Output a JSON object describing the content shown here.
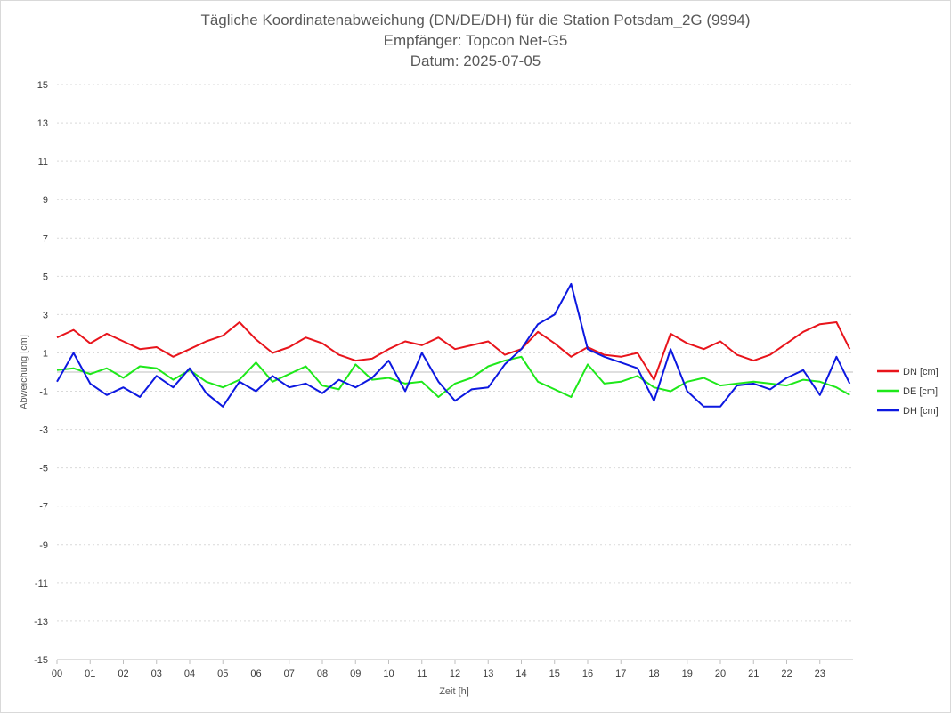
{
  "chart_data": {
    "type": "line",
    "title_lines": [
      "Tägliche Koordinatenabweichung (DN/DE/DH) für die Station Potsdam_2G (9994)",
      "Empfänger: Topcon Net-G5",
      "Datum: 2025-07-05"
    ],
    "xlabel": "Zeit [h]",
    "ylabel": "Abweichung [cm]",
    "xlim": [
      0,
      24
    ],
    "ylim": [
      -15,
      15
    ],
    "xticks": [
      "00",
      "01",
      "02",
      "03",
      "04",
      "05",
      "06",
      "07",
      "08",
      "09",
      "10",
      "11",
      "12",
      "13",
      "14",
      "15",
      "16",
      "17",
      "18",
      "19",
      "20",
      "21",
      "22",
      "23"
    ],
    "yticks": [
      15,
      13,
      11,
      9,
      7,
      5,
      3,
      1,
      -1,
      -3,
      -5,
      -7,
      -9,
      -11,
      -13,
      -15
    ],
    "grid": true,
    "legend_position": "right",
    "x": [
      0,
      0.5,
      1,
      1.5,
      2,
      2.5,
      3,
      3.5,
      4,
      4.5,
      5,
      5.5,
      6,
      6.5,
      7,
      7.5,
      8,
      8.5,
      9,
      9.5,
      10,
      10.5,
      11,
      11.5,
      12,
      12.5,
      13,
      13.5,
      14,
      14.5,
      15,
      15.5,
      16,
      16.5,
      17,
      17.5,
      18,
      18.5,
      19,
      19.5,
      20,
      20.5,
      21,
      21.5,
      22,
      22.5,
      23,
      23.5,
      23.9
    ],
    "series": [
      {
        "name": "DN [cm]",
        "color": "#e8141b",
        "values": [
          1.8,
          2.2,
          1.5,
          2.0,
          1.6,
          1.2,
          1.3,
          0.8,
          1.2,
          1.6,
          1.9,
          2.6,
          1.7,
          1.0,
          1.3,
          1.8,
          1.5,
          0.9,
          0.6,
          0.7,
          1.2,
          1.6,
          1.4,
          1.8,
          1.2,
          1.4,
          1.6,
          0.9,
          1.2,
          2.1,
          1.5,
          0.8,
          1.3,
          0.9,
          0.8,
          1.0,
          -0.4,
          2.0,
          1.5,
          1.2,
          1.6,
          0.9,
          0.6,
          0.9,
          1.5,
          2.1,
          2.5,
          2.6,
          1.2
        ]
      },
      {
        "name": "DE [cm]",
        "color": "#1ee81a",
        "values": [
          0.1,
          0.2,
          -0.1,
          0.2,
          -0.3,
          0.3,
          0.2,
          -0.4,
          0.1,
          -0.5,
          -0.8,
          -0.4,
          0.5,
          -0.5,
          -0.1,
          0.3,
          -0.7,
          -0.9,
          0.4,
          -0.4,
          -0.3,
          -0.6,
          -0.5,
          -1.3,
          -0.6,
          -0.3,
          0.3,
          0.6,
          0.8,
          -0.5,
          -0.9,
          -1.3,
          0.4,
          -0.6,
          -0.5,
          -0.2,
          -0.8,
          -1.0,
          -0.5,
          -0.3,
          -0.7,
          -0.6,
          -0.5,
          -0.6,
          -0.7,
          -0.4,
          -0.5,
          -0.8,
          -1.2
        ]
      },
      {
        "name": "DH [cm]",
        "color": "#0c18e0",
        "values": [
          -0.5,
          1.0,
          -0.6,
          -1.2,
          -0.8,
          -1.3,
          -0.2,
          -0.8,
          0.2,
          -1.1,
          -1.8,
          -0.5,
          -1.0,
          -0.2,
          -0.8,
          -0.6,
          -1.1,
          -0.4,
          -0.8,
          -0.3,
          0.6,
          -1.0,
          1.0,
          -0.5,
          -1.5,
          -0.9,
          -0.8,
          0.4,
          1.2,
          2.5,
          3.0,
          4.6,
          1.2,
          0.8,
          0.5,
          0.2,
          -1.5,
          1.2,
          -1.0,
          -1.8,
          -1.8,
          -0.7,
          -0.6,
          -0.9,
          -0.3,
          0.1,
          -1.2,
          0.8,
          -0.6
        ]
      }
    ]
  }
}
